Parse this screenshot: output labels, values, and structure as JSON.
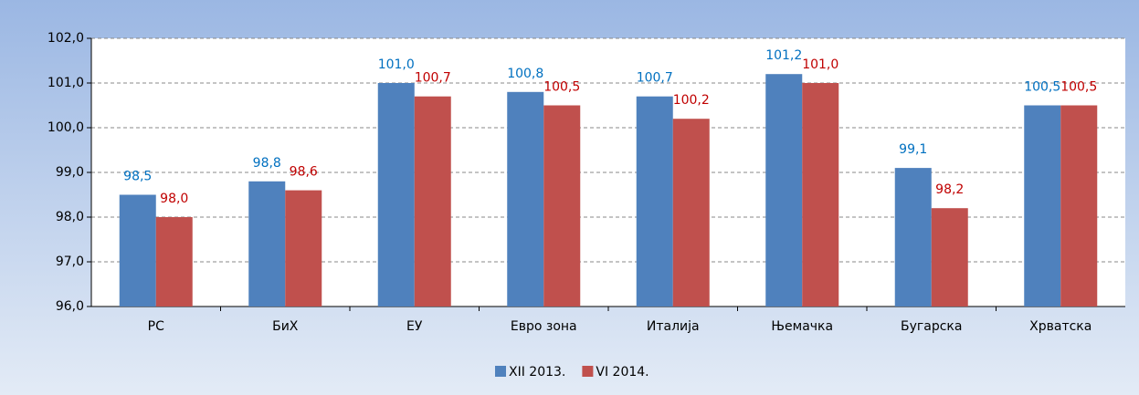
{
  "chart_data": {
    "type": "bar",
    "categories": [
      "РС",
      "БиХ",
      "ЕУ",
      "Евро зона",
      "Италија",
      "Њемачка",
      "Бугарска",
      "Хрватска"
    ],
    "series": [
      {
        "name": "XII 2013.",
        "color": "#4f81bd",
        "label_color": "#0070c0",
        "values": [
          98.5,
          98.8,
          101.0,
          100.8,
          100.7,
          101.2,
          99.1,
          100.5
        ],
        "value_labels": [
          "98,5",
          "98,8",
          "101,0",
          "100,8",
          "100,7",
          "101,2",
          "99,1",
          "100,5"
        ]
      },
      {
        "name": "VI 2014.",
        "color": "#c0504d",
        "label_color": "#c00000",
        "values": [
          98.0,
          98.6,
          100.7,
          100.5,
          100.2,
          101.0,
          98.2,
          100.5
        ],
        "value_labels": [
          "98,0",
          "98,6",
          "100,7",
          "100,5",
          "100,2",
          "101,0",
          "98,2",
          "100,5"
        ]
      }
    ],
    "ylim": [
      96,
      102
    ],
    "yticks": [
      {
        "value": 96,
        "label": "96,0"
      },
      {
        "value": 97,
        "label": "97,0"
      },
      {
        "value": 98,
        "label": "98,0"
      },
      {
        "value": 99,
        "label": "99,0"
      },
      {
        "value": 100,
        "label": "100,0"
      },
      {
        "value": 101,
        "label": "101,0"
      },
      {
        "value": 102,
        "label": "102,0"
      }
    ],
    "grid": true,
    "legend": "bottom"
  }
}
